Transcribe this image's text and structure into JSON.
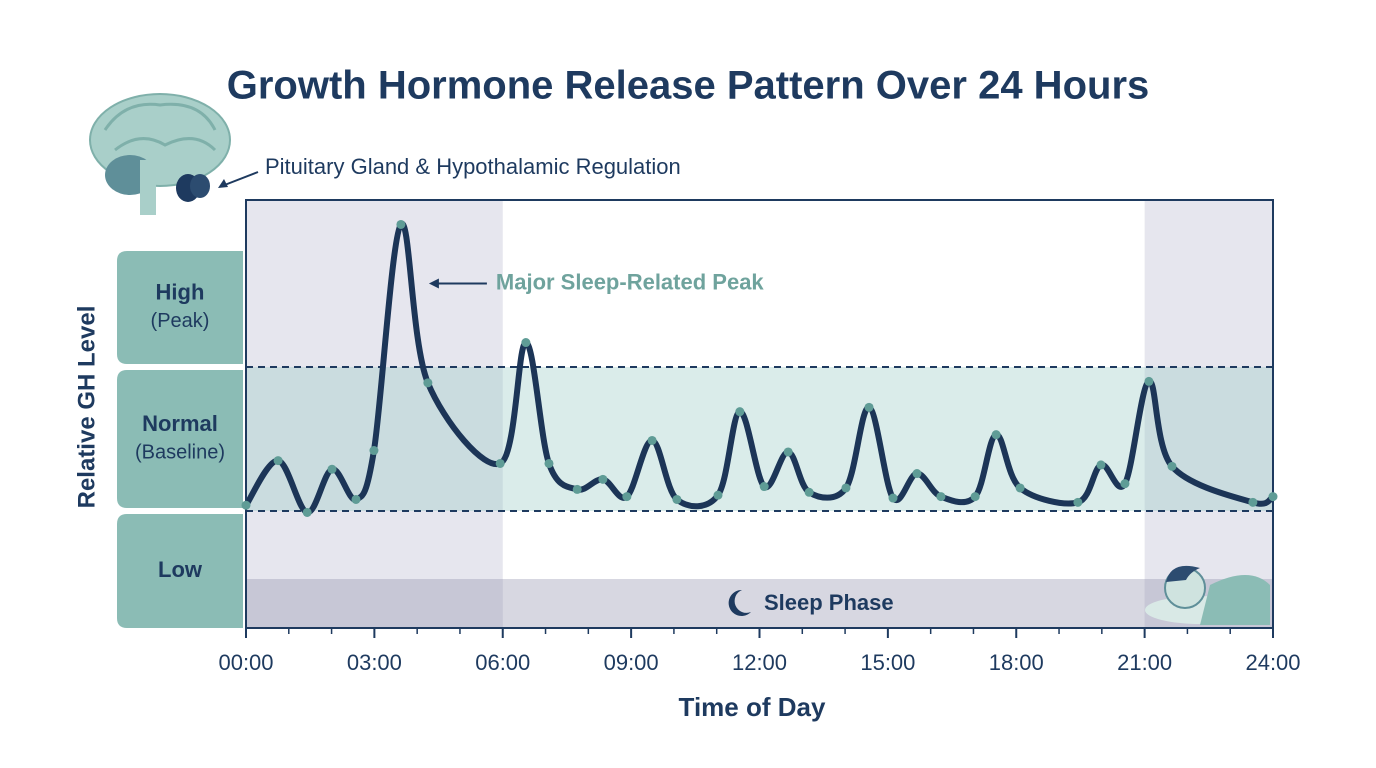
{
  "chart_data": {
    "type": "line",
    "title": "Growth Hormone Release Pattern Over 24 Hours",
    "subtitle": "Pituitary Gland & Hypothalamic Regulation",
    "annotation": "Major Sleep-Related Peak",
    "x_label": "Time of Day",
    "y_label": "Relative GH Level",
    "x": [
      0,
      0.75,
      1.43,
      2.01,
      2.57,
      2.99,
      3.62,
      4.25,
      5.94,
      6.54,
      7.08,
      7.74,
      8.34,
      8.9,
      9.49,
      10.07,
      11.03,
      11.54,
      12.11,
      12.67,
      13.16,
      14.02,
      14.56,
      15.12,
      15.68,
      16.24,
      17.04,
      17.53,
      18.09,
      19.44,
      19.98,
      20.54,
      21.1,
      21.64,
      23.53,
      24
    ],
    "values": [
      1.04,
      1.35,
      0.99,
      1.29,
      1.08,
      1.42,
      2.99,
      1.89,
      1.33,
      2.17,
      1.33,
      1.15,
      1.22,
      1.1,
      1.49,
      1.08,
      1.11,
      1.69,
      1.17,
      1.41,
      1.13,
      1.16,
      1.72,
      1.09,
      1.26,
      1.1,
      1.1,
      1.53,
      1.16,
      1.06,
      1.32,
      1.19,
      1.9,
      1.31,
      1.06,
      1.1
    ],
    "color": "#1c3557",
    "xlim": [
      0,
      24
    ],
    "xticks": [
      {
        "value": 0,
        "label": "00:00"
      },
      {
        "value": 3,
        "label": "03:00"
      },
      {
        "value": 6,
        "label": "06:00"
      },
      {
        "value": 9,
        "label": "09:00"
      },
      {
        "value": 12,
        "label": "12:00"
      },
      {
        "value": 15,
        "label": "15:00"
      },
      {
        "value": 18,
        "label": "18:00"
      },
      {
        "value": 21,
        "label": "21:00"
      },
      {
        "value": 24,
        "label": "24:00"
      }
    ],
    "ylim": [
      0,
      3
    ],
    "thresholds": [
      1,
      2
    ],
    "levels": [
      {
        "label": "High",
        "note": "(Peak)"
      },
      {
        "label": "Normal",
        "note": "(Baseline)"
      },
      {
        "label": "Low"
      }
    ],
    "sleep_phase_label": "Sleep Phase",
    "sleep_periods": [
      [
        0,
        6
      ],
      [
        21,
        24
      ]
    ]
  }
}
